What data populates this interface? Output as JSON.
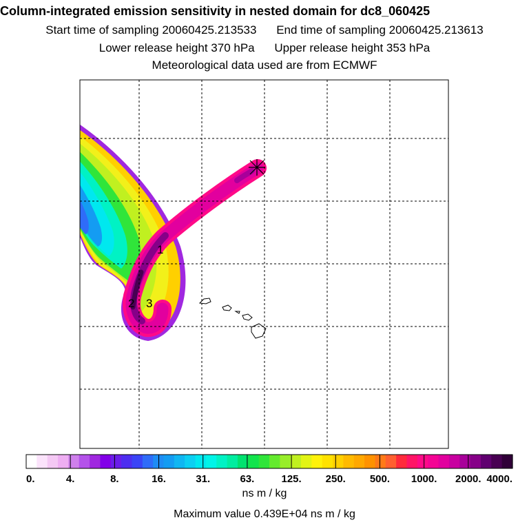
{
  "header": {
    "title": "Column-integrated emission sensitivity in nested domain for dc8_060425",
    "start": "Start time of sampling 20060425.213533",
    "end": "End time of sampling 20060425.213613",
    "lower": "Lower release height  370 hPa",
    "upper": "Upper release height  353 hPa",
    "met": "Meteorological data used are from ECMWF"
  },
  "chart_data": {
    "type": "heatmap",
    "title": "Column-integrated emission sensitivity in nested domain for dc8_060425",
    "colorbar": {
      "label": "ns m / kg",
      "scale": "logarithmic",
      "ticks": [
        "0.",
        "4.",
        "8.",
        "16.",
        "31.",
        "63.",
        "125.",
        "250.",
        "500.",
        "1000.",
        "2000.",
        "4000."
      ],
      "colors": [
        "#ffffff",
        "#fbe3fb",
        "#f4c8f4",
        "#eeaef2",
        "#cf80ec",
        "#b452ea",
        "#a028e0",
        "#8200e8",
        "#6a1eea",
        "#4d2ef0",
        "#3a44f6",
        "#2f6cf8",
        "#1e8cf4",
        "#149cf2",
        "#10b6f2",
        "#0ccff2",
        "#00e8ef",
        "#00f4e8",
        "#00f2c4",
        "#00eda0",
        "#00e26f",
        "#12e44c",
        "#30e53a",
        "#64ea2e",
        "#98ee2a",
        "#c0f020",
        "#e2f414",
        "#fff20a",
        "#ffe200",
        "#ffd000",
        "#ffba00",
        "#ffa800",
        "#ff9200",
        "#ff7a18",
        "#ff6030",
        "#ff2a3c",
        "#ff1466",
        "#ff0a88",
        "#f40494",
        "#e2009e",
        "#c800a0",
        "#a8009a",
        "#860088",
        "#600070",
        "#480052",
        "#300038"
      ]
    },
    "plume_labels": [
      "1",
      "2",
      "3"
    ],
    "grid": true,
    "max_value_text": "Maximum value  0.439E+04 ns m / kg"
  },
  "footer": {
    "units": "ns m / kg",
    "max": "Maximum value  0.439E+04 ns m / kg"
  }
}
